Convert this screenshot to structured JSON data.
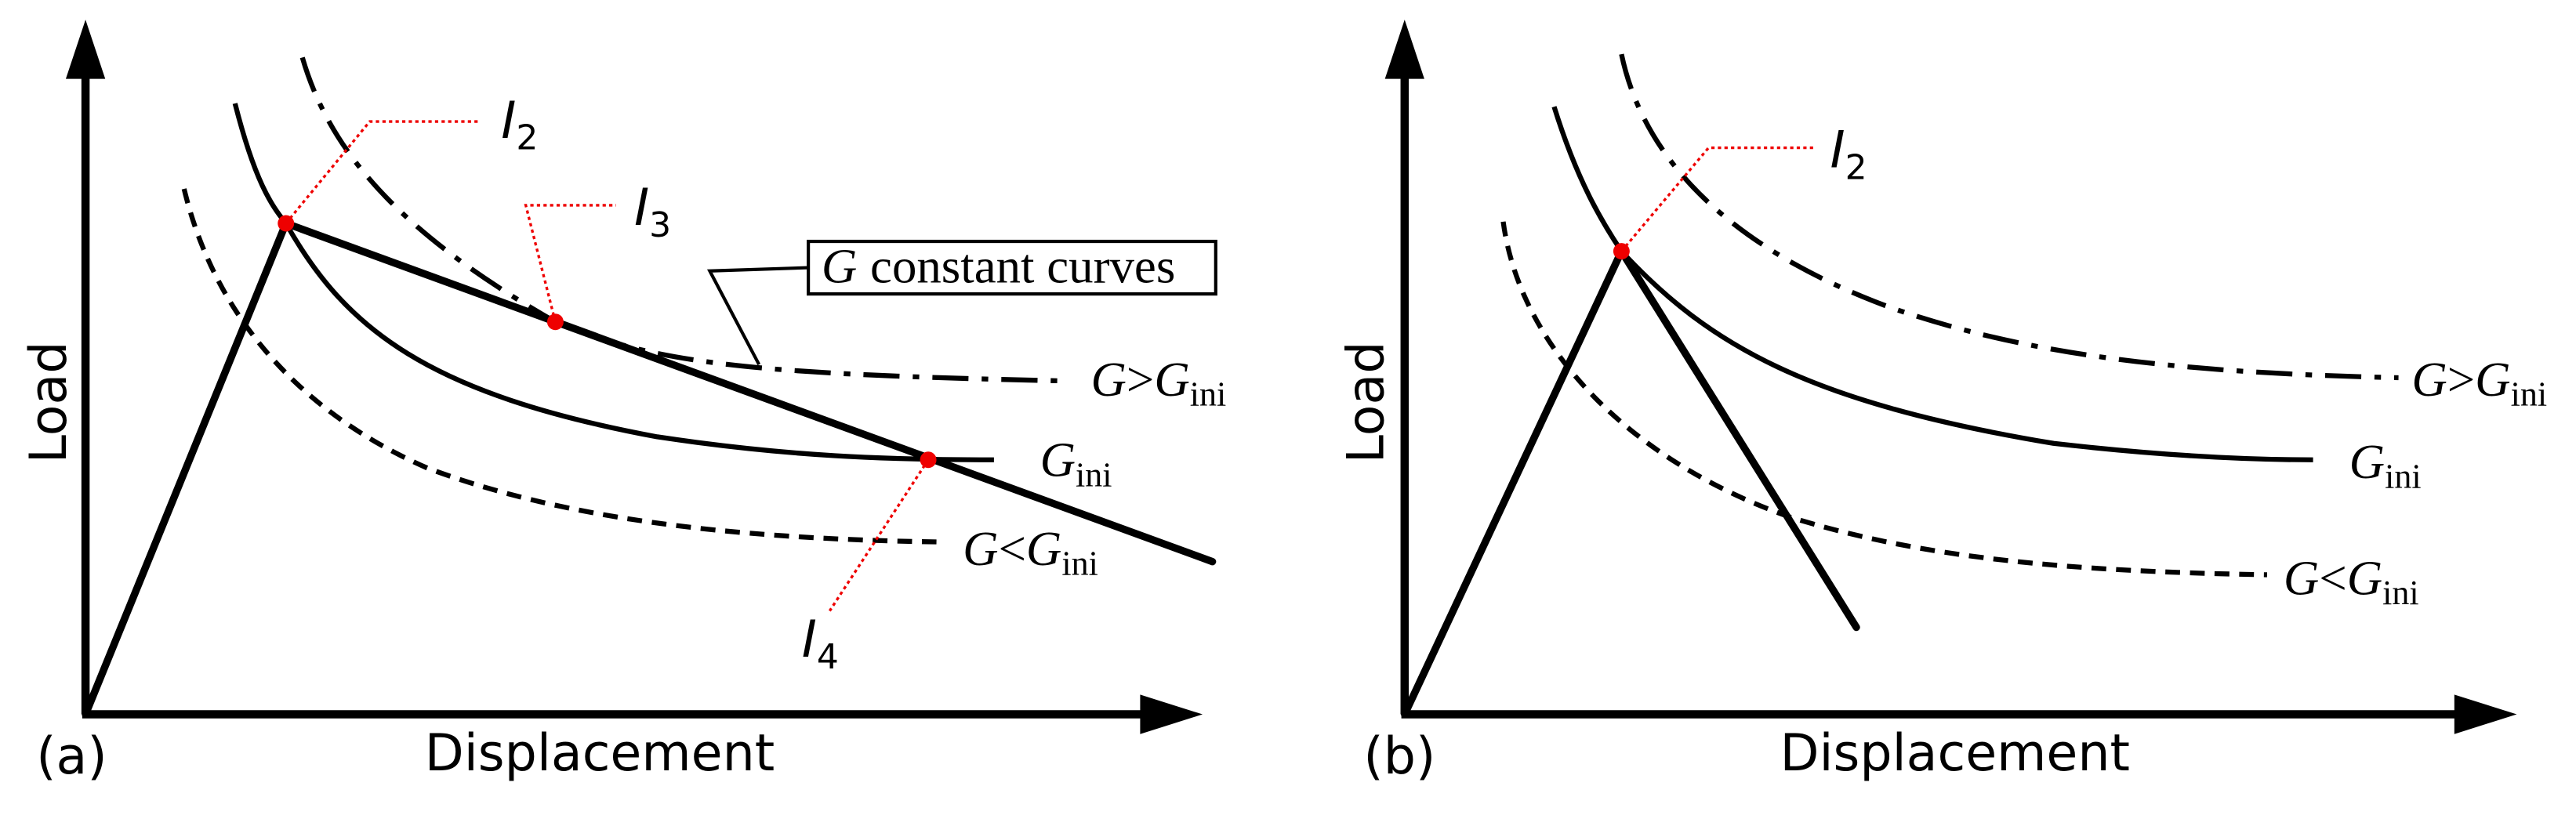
{
  "panels": [
    {
      "tag": "(a)",
      "y_axis": "Load",
      "x_axis": "Displacement",
      "points": [
        {
          "letter": "I",
          "sub": "2"
        },
        {
          "letter": "I",
          "sub": "3"
        },
        {
          "letter": "I",
          "sub": "4"
        }
      ],
      "callout": {
        "symbol": "G",
        "text": "constant curves"
      },
      "curves": [
        {
          "symbol": "G",
          "relation": ">",
          "ref": "G",
          "sub": "ini"
        },
        {
          "symbol": "G",
          "sub": "ini"
        },
        {
          "symbol": "G",
          "relation": "<",
          "ref": "G",
          "sub": "ini"
        }
      ]
    },
    {
      "tag": "(b)",
      "y_axis": "Load",
      "x_axis": "Displacement",
      "points": [
        {
          "letter": "I",
          "sub": "2"
        }
      ],
      "curves": [
        {
          "symbol": "G",
          "relation": ">",
          "ref": "G",
          "sub": "ini"
        },
        {
          "symbol": "G",
          "sub": "ini"
        },
        {
          "symbol": "G",
          "relation": "<",
          "ref": "G",
          "sub": "ini"
        }
      ]
    }
  ]
}
